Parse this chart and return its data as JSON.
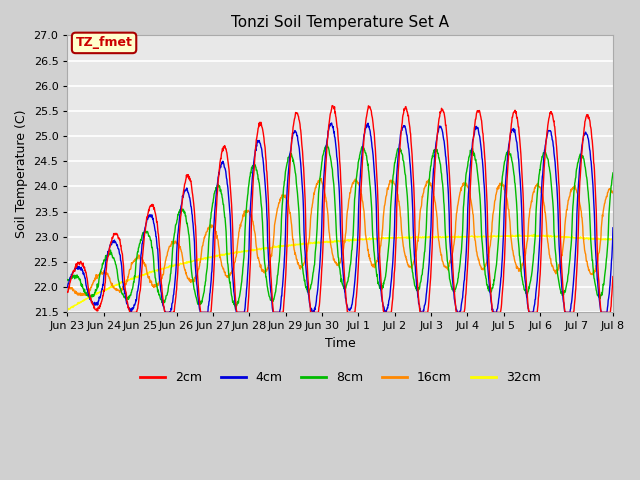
{
  "title": "Tonzi Soil Temperature Set A",
  "xlabel": "Time",
  "ylabel": "Soil Temperature (C)",
  "ylim": [
    21.5,
    27.0
  ],
  "yticks": [
    21.5,
    22.0,
    22.5,
    23.0,
    23.5,
    24.0,
    24.5,
    25.0,
    25.5,
    26.0,
    26.5,
    27.0
  ],
  "annotation_text": "TZ_fmet",
  "annotation_bg": "#ffffcc",
  "annotation_border": "#aa0000",
  "annotation_text_color": "#cc0000",
  "series_colors": {
    "2cm": "#ff0000",
    "4cm": "#0000dd",
    "8cm": "#00bb00",
    "16cm": "#ff8800",
    "32cm": "#ffff00"
  },
  "fig_facecolor": "#d0d0d0",
  "ax_facecolor": "#e8e8e8",
  "grid_color": "#ffffff",
  "tick_labels": [
    "Jun 23",
    "Jun 24",
    "Jun 25",
    "Jun 26",
    "Jun 27",
    "Jun 28",
    "Jun 29",
    "Jun 30",
    "Jul 1",
    "Jul 2",
    "Jul 3",
    "Jul 4",
    "Jul 5",
    "Jul 6",
    "Jul 7",
    "Jul 8"
  ],
  "n_points": 1500
}
